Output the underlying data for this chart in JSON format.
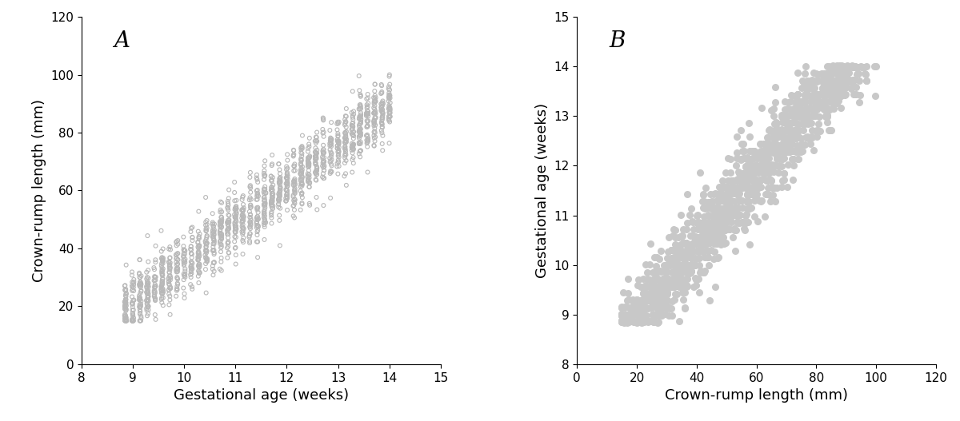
{
  "panel_A": {
    "label": "A",
    "xlabel": "Gestational age (weeks)",
    "ylabel": "Crown-rump length (mm)",
    "xlim": [
      8,
      15
    ],
    "ylim": [
      0,
      120
    ],
    "xticks": [
      8,
      9,
      10,
      11,
      12,
      13,
      14,
      15
    ],
    "yticks": [
      0,
      20,
      40,
      60,
      80,
      100,
      120
    ],
    "marker_size": 3.5,
    "marker_facecolor": "none",
    "marker_edgecolor": "#b8b8b8",
    "marker_edgewidth": 0.8
  },
  "panel_B": {
    "label": "B",
    "xlabel": "Crown-rump length (mm)",
    "ylabel": "Gestational age (weeks)",
    "xlim": [
      0,
      120
    ],
    "ylim": [
      8,
      15
    ],
    "xticks": [
      0,
      20,
      40,
      60,
      80,
      100,
      120
    ],
    "yticks": [
      8,
      9,
      10,
      11,
      12,
      13,
      14,
      15
    ],
    "marker_size": 6.5,
    "marker_facecolor": "#c8c8c8",
    "marker_edgecolor": "#c8c8c8",
    "marker_edgewidth": 0
  },
  "label_fontsize": 13,
  "panel_label_fontsize": 20,
  "tick_fontsize": 11,
  "figure_bg": "#ffffff",
  "axes_bg": "#ffffff",
  "spine_color": "#000000",
  "seed": 12345,
  "n_points": 1500,
  "crl_slope": 13.5,
  "crl_intercept": -100.0,
  "crl_noise_std": 5.5,
  "ga_min": 8.86,
  "ga_max": 14.05
}
